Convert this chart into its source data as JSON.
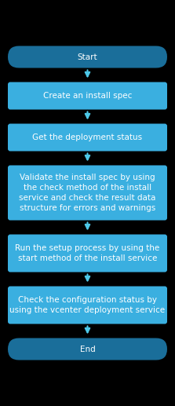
{
  "background_color": "#000000",
  "box_color": "#3aafe0",
  "box_edge_color": "#3aafe0",
  "text_color": "#ffffff",
  "arrow_color": "#4dc8e8",
  "start_end_color": "#1a6e9a",
  "start_end_edge_color": "#1a6e9a",
  "nodes": [
    {
      "label": "Start",
      "type": "stadium"
    },
    {
      "label": "Create an install spec",
      "type": "rect"
    },
    {
      "label": "Get the deployment status",
      "type": "rect"
    },
    {
      "label": "Validate the install spec by using\nthe check method of the install\nservice and check the result data\nstructure for errors and warnings",
      "type": "rect"
    },
    {
      "label": "Run the setup process by using the\nstart method of the install service",
      "type": "rect"
    },
    {
      "label": "Check the configuration status by\nusing the vcenter deployment service",
      "type": "rect"
    },
    {
      "label": "End",
      "type": "stadium"
    }
  ],
  "font_size": 7.5
}
